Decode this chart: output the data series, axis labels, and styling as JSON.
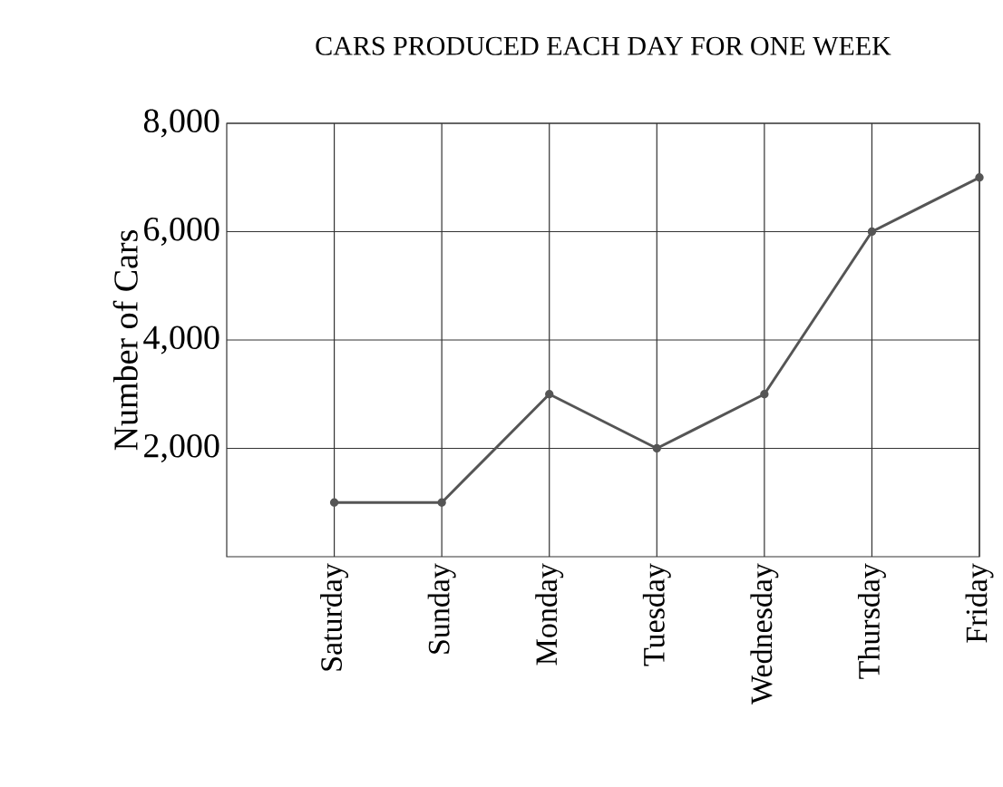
{
  "chart_data": {
    "type": "line",
    "title": "CARS PRODUCED EACH DAY FOR ONE WEEK",
    "ylabel": "Number of Cars",
    "categories": [
      "Saturday",
      "Sunday",
      "Monday",
      "Tuesday",
      "Wednesday",
      "Thursday",
      "Friday"
    ],
    "values": [
      1000,
      1000,
      3000,
      2000,
      3000,
      6000,
      7000
    ],
    "color": "#555555",
    "marker": "circle",
    "line_style": "solid",
    "grid": true,
    "ylim": [
      0,
      8000
    ],
    "yticks": [
      {
        "value": 2000,
        "label": "2,000"
      },
      {
        "value": 4000,
        "label": "4,000"
      },
      {
        "value": 6000,
        "label": "6,000"
      },
      {
        "value": 8000,
        "label": "8,000"
      }
    ]
  }
}
